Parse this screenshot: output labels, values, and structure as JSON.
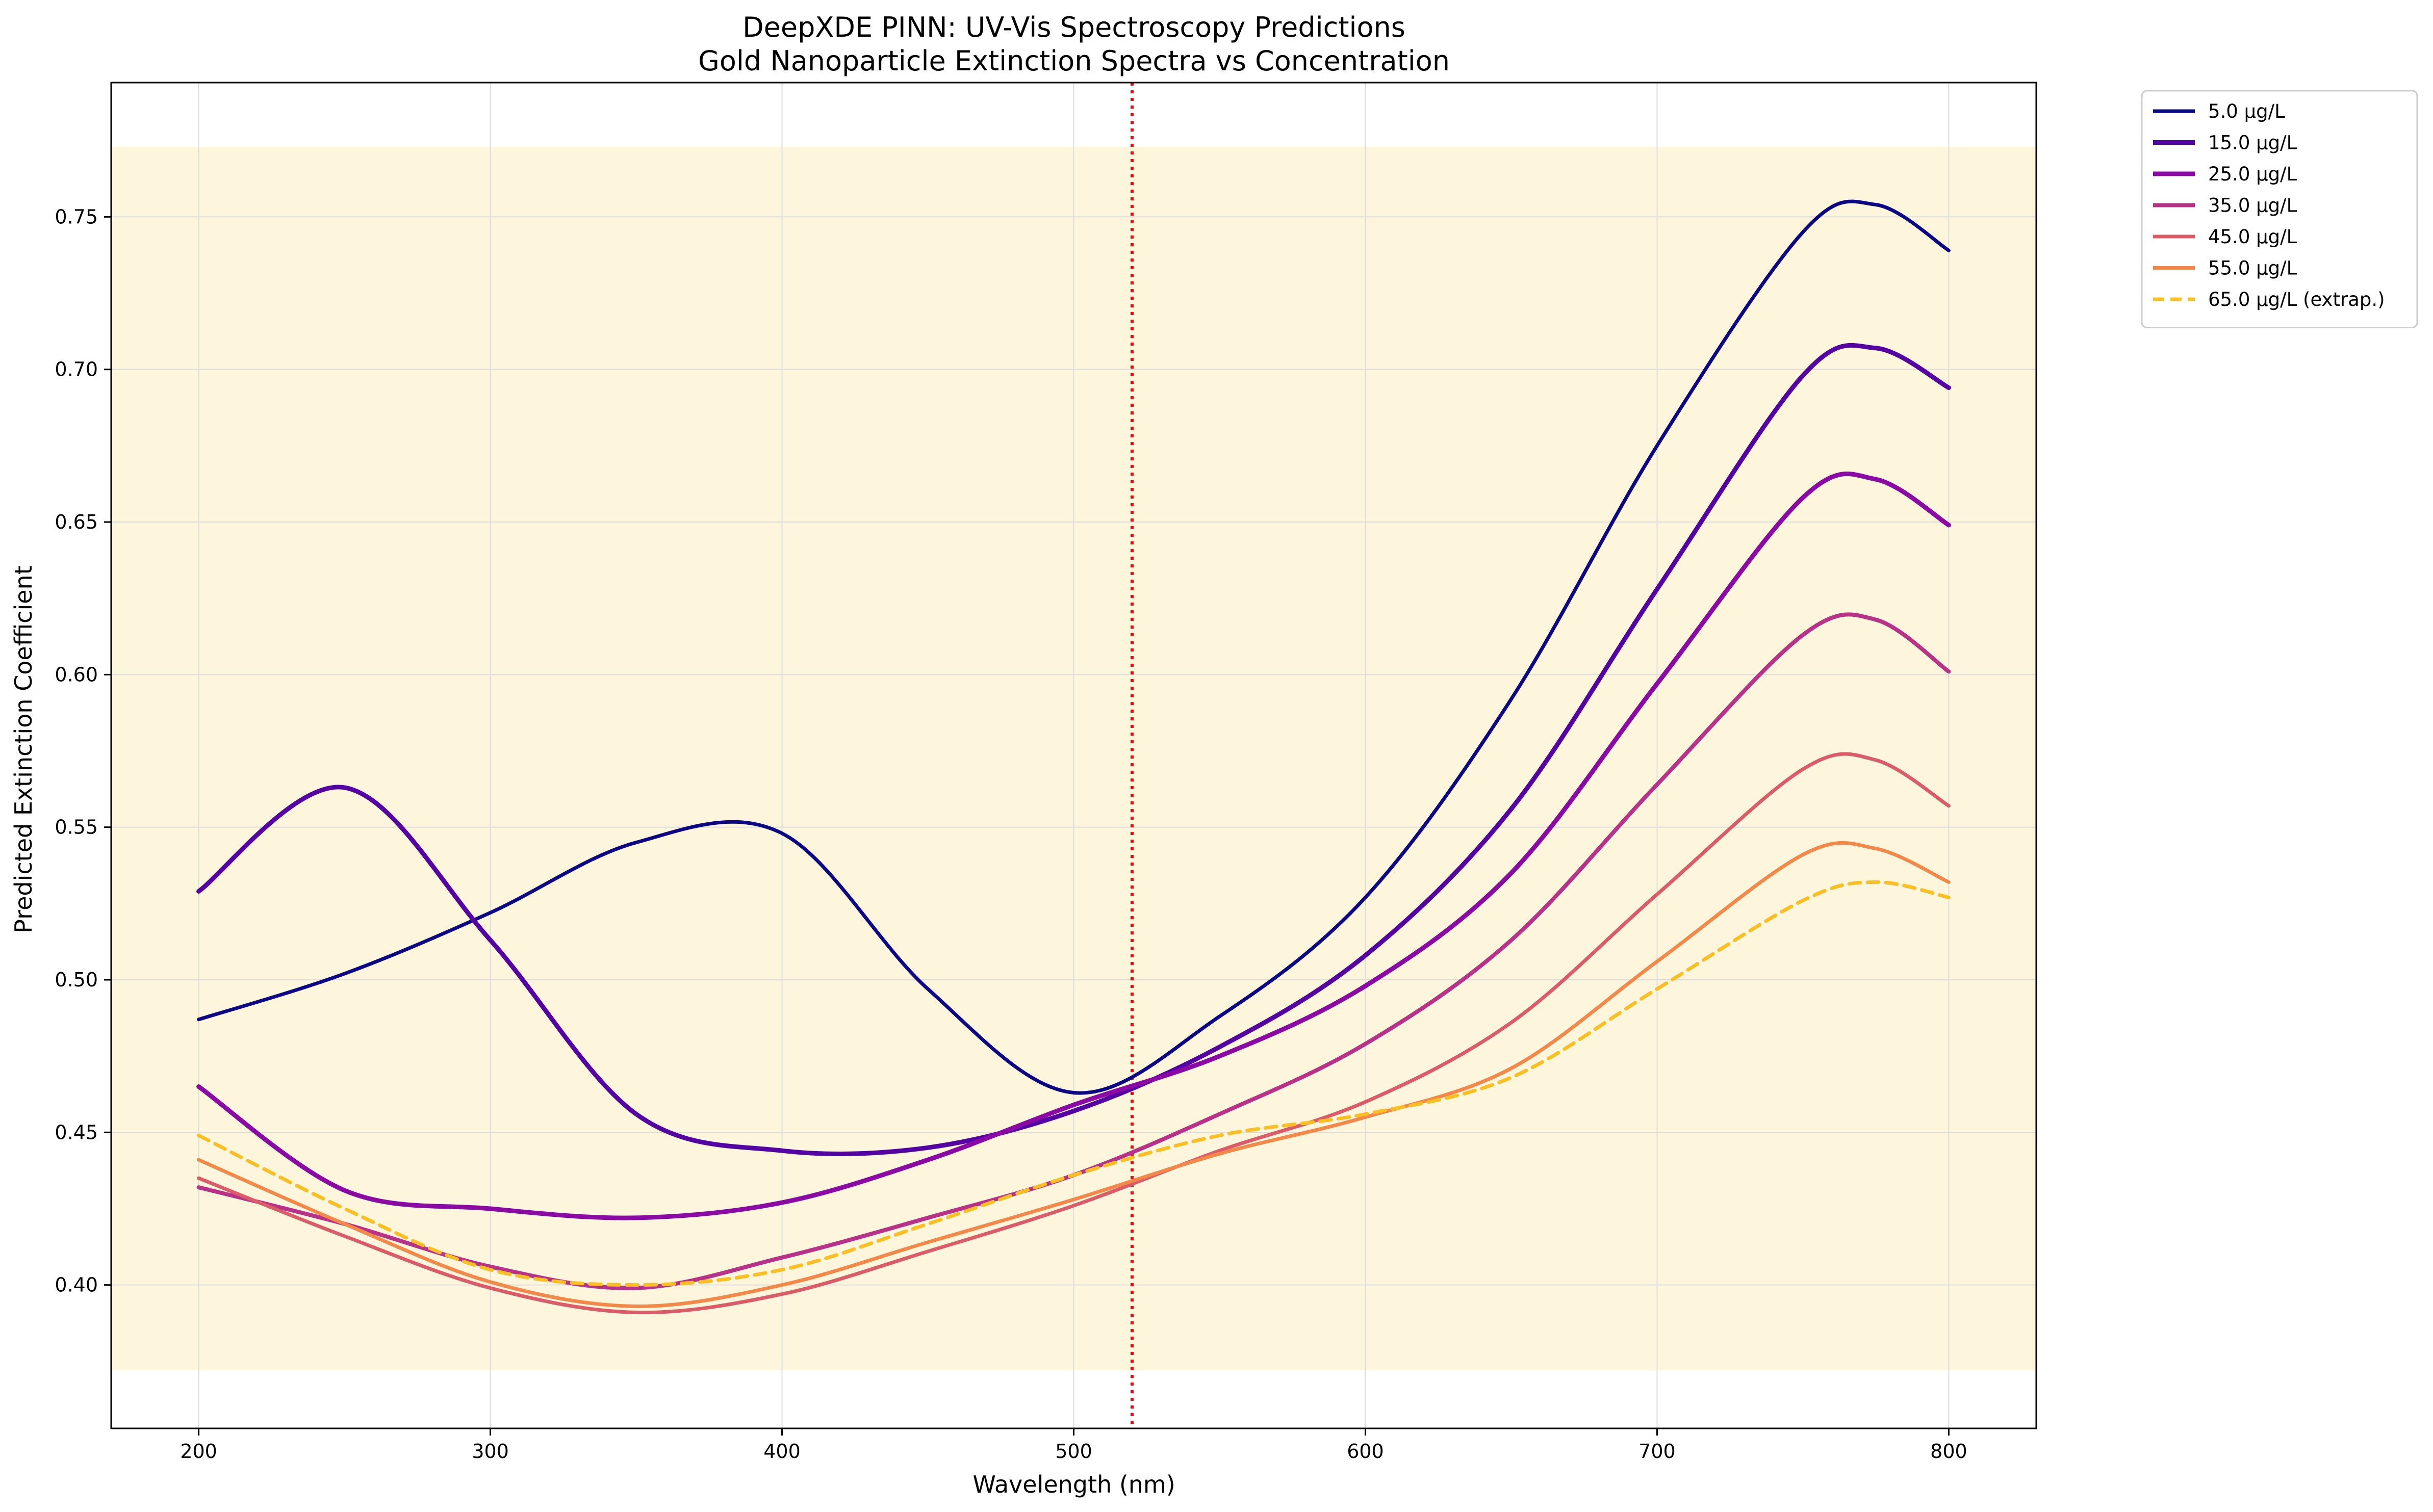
{
  "chart_data": {
    "type": "line",
    "title": "DeepXDE PINN: UV-Vis Spectroscopy Predictions",
    "subtitle": "Gold Nanoparticle Extinction Spectra vs Concentration",
    "xlabel": "Wavelength (nm)",
    "ylabel": "Predicted Extinction Coefficient",
    "xlim": [
      170,
      830
    ],
    "ylim": [
      0.353,
      0.794
    ],
    "x_ticks": [
      200,
      300,
      400,
      500,
      600,
      700,
      800
    ],
    "x_tick_labels": [
      "200",
      "300",
      "400",
      "500",
      "600",
      "700",
      "800"
    ],
    "y_ticks": [
      0.4,
      0.45,
      0.5,
      0.55,
      0.6,
      0.65,
      0.7,
      0.75
    ],
    "y_tick_labels": [
      "0.40",
      "0.45",
      "0.50",
      "0.55",
      "0.60",
      "0.65",
      "0.70",
      "0.75"
    ],
    "grid": true,
    "legend_position": "outside upper right",
    "shaded_band": {
      "y_range": [
        0.372,
        0.773
      ],
      "color": "#fdf6dc"
    },
    "reference_line": {
      "x": 520,
      "color": "#ff0000",
      "style": "dotted"
    },
    "x": [
      200,
      250,
      300,
      350,
      400,
      450,
      500,
      550,
      600,
      650,
      700,
      750,
      775,
      800
    ],
    "series": [
      {
        "name": "5.0 µg/L",
        "color": "#0c0786",
        "dashed": false,
        "width": 7,
        "values": [
          0.487,
          0.502,
          0.522,
          0.545,
          0.548,
          0.497,
          0.463,
          0.488,
          0.527,
          0.592,
          0.675,
          0.745,
          0.754,
          0.739
        ]
      },
      {
        "name": "15.0 µg/L",
        "color": "#5402a3",
        "dashed": false,
        "width": 9,
        "values": [
          0.529,
          0.563,
          0.513,
          0.456,
          0.444,
          0.445,
          0.457,
          0.478,
          0.508,
          0.556,
          0.628,
          0.698,
          0.707,
          0.694
        ]
      },
      {
        "name": "25.0 µg/L",
        "color": "#8b09a5",
        "dashed": false,
        "width": 9,
        "values": [
          0.465,
          0.431,
          0.425,
          0.422,
          0.427,
          0.441,
          0.459,
          0.475,
          0.498,
          0.535,
          0.597,
          0.658,
          0.664,
          0.649
        ]
      },
      {
        "name": "35.0 µg/L",
        "color": "#b93289",
        "dashed": false,
        "width": 8,
        "values": [
          0.432,
          0.42,
          0.406,
          0.399,
          0.409,
          0.422,
          0.436,
          0.456,
          0.479,
          0.513,
          0.564,
          0.613,
          0.618,
          0.601
        ]
      },
      {
        "name": "45.0 µg/L",
        "color": "#db5c68",
        "dashed": false,
        "width": 7,
        "values": [
          0.435,
          0.416,
          0.399,
          0.391,
          0.397,
          0.411,
          0.426,
          0.444,
          0.46,
          0.486,
          0.528,
          0.569,
          0.572,
          0.557
        ]
      },
      {
        "name": "55.0 µg/L",
        "color": "#f48849",
        "dashed": false,
        "width": 7,
        "values": [
          0.441,
          0.42,
          0.401,
          0.393,
          0.4,
          0.414,
          0.428,
          0.443,
          0.455,
          0.471,
          0.506,
          0.541,
          0.543,
          0.532
        ]
      },
      {
        "name": "65.0 µg/L (extrap.)",
        "color": "#fbbf24",
        "dashed": true,
        "width": 7,
        "values": [
          0.449,
          0.425,
          0.405,
          0.4,
          0.405,
          0.42,
          0.436,
          0.449,
          0.456,
          0.468,
          0.497,
          0.526,
          0.532,
          0.527
        ]
      }
    ]
  }
}
